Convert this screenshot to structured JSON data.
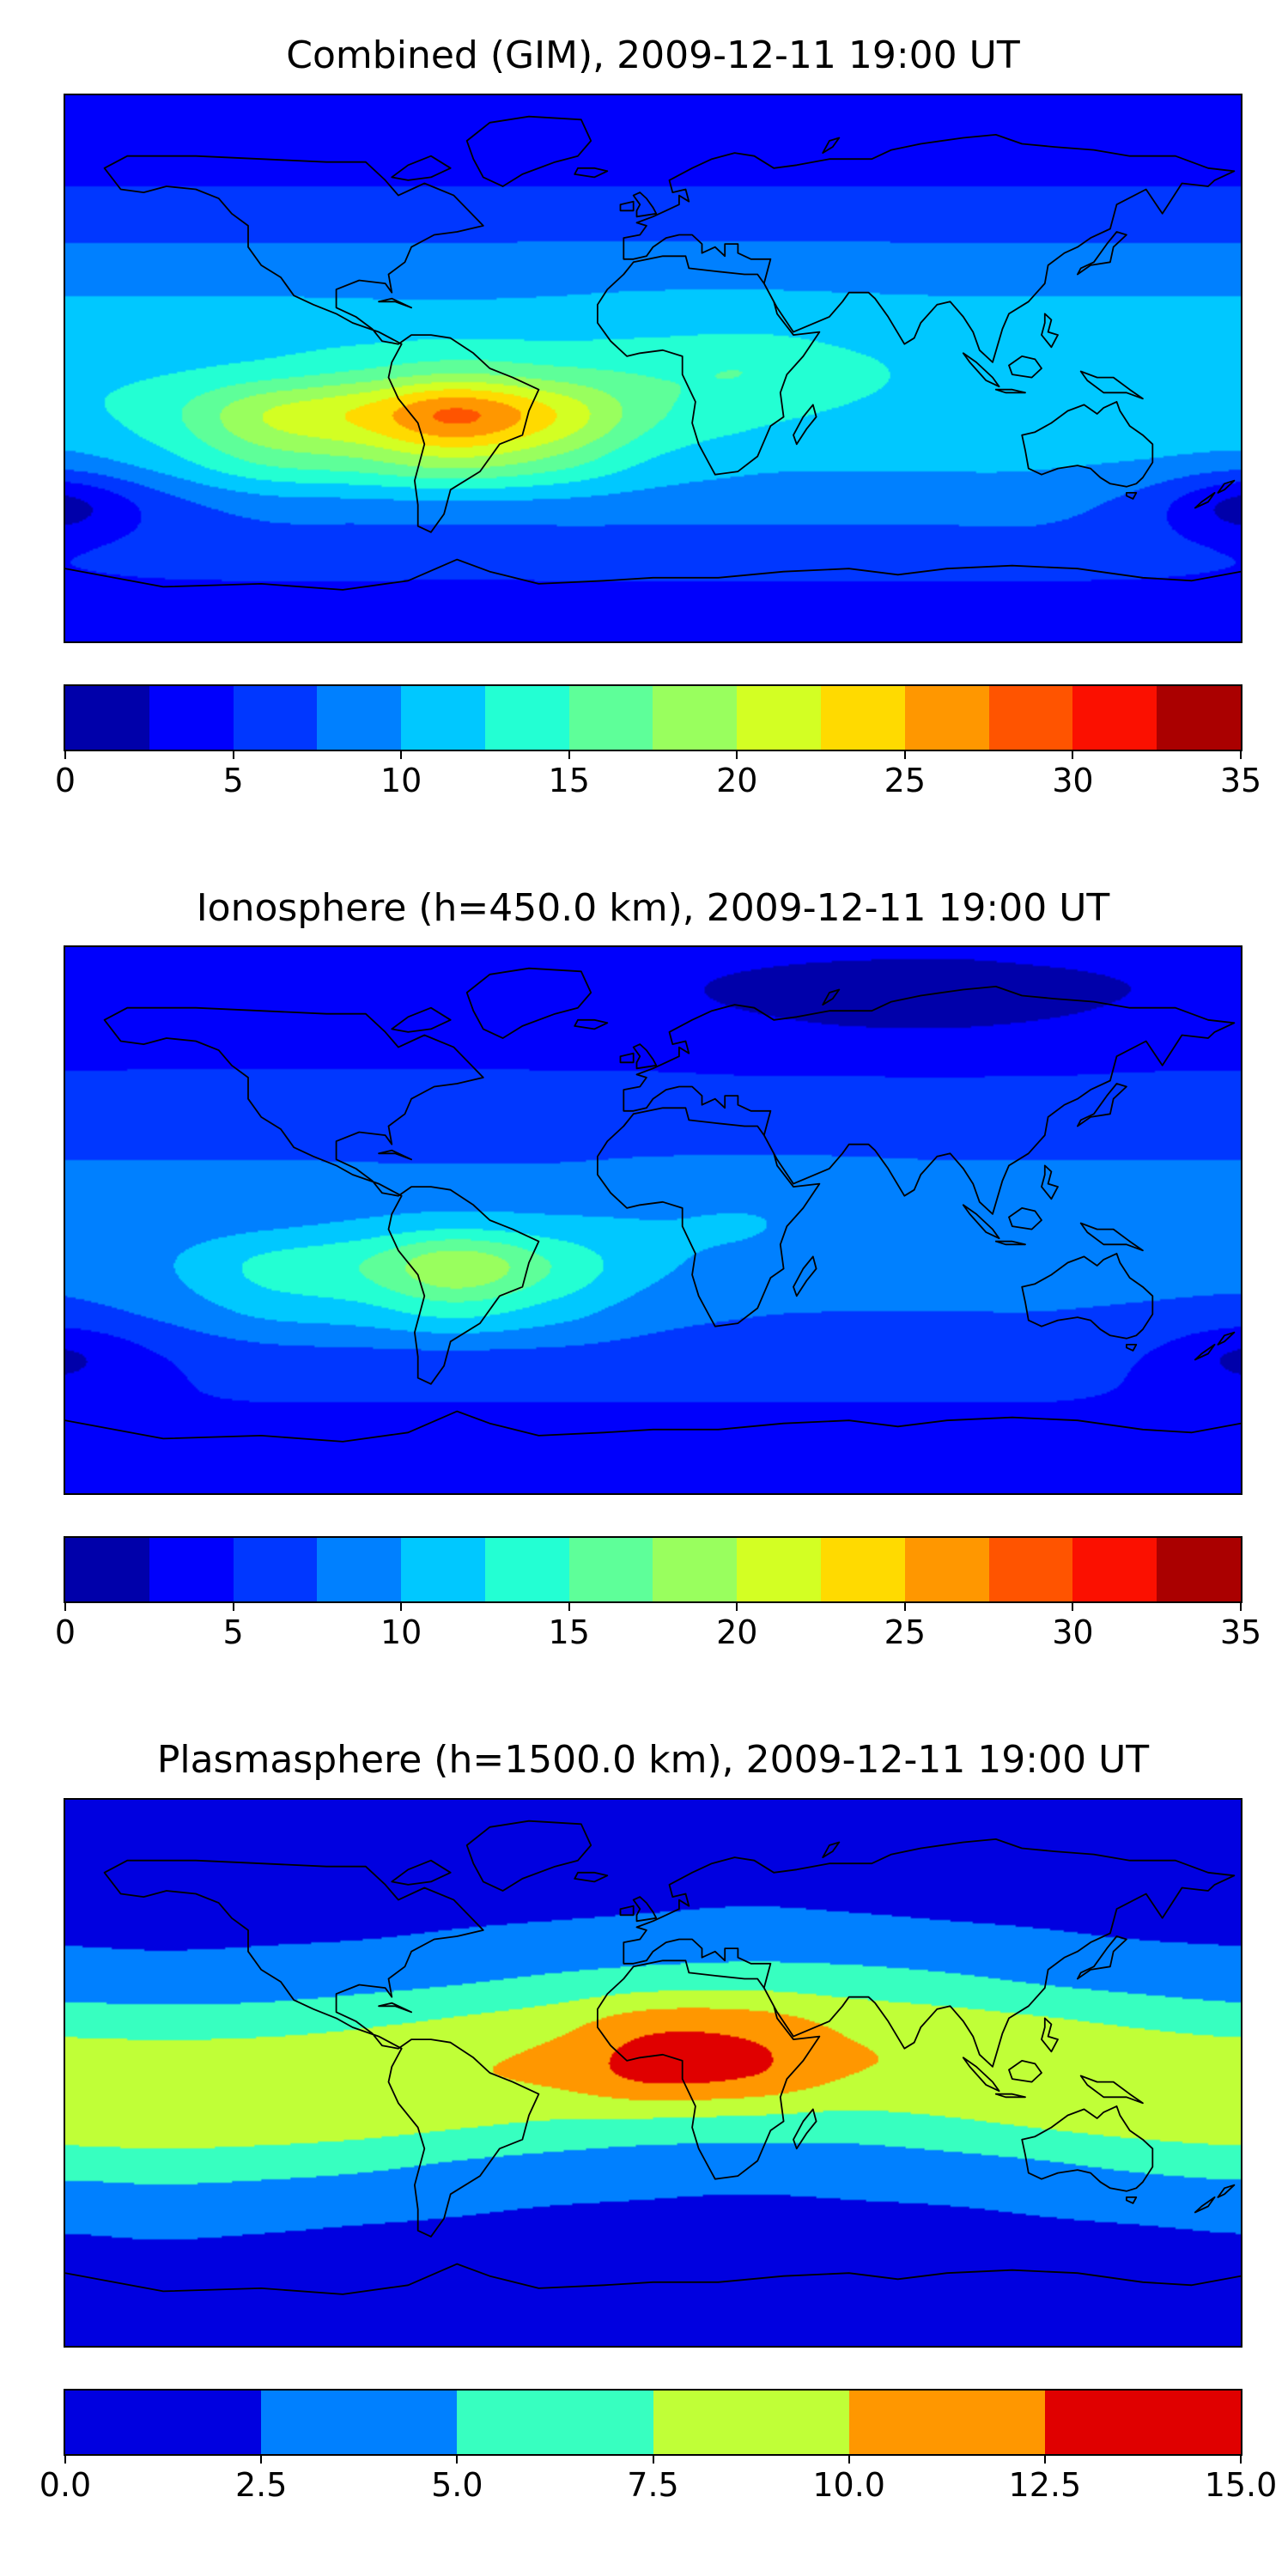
{
  "figure": {
    "panels": [
      {
        "id": "combined-gim",
        "title": "Combined (GIM), 2009-12-11 19:00 UT",
        "colorbar": {
          "ticks": [
            "0",
            "5",
            "10",
            "15",
            "20",
            "25",
            "30",
            "35"
          ]
        }
      },
      {
        "id": "ionosphere",
        "title": "Ionosphere  (h=450.0 km), 2009-12-11 19:00 UT",
        "colorbar": {
          "ticks": [
            "0",
            "5",
            "10",
            "15",
            "20",
            "25",
            "30",
            "35"
          ]
        }
      },
      {
        "id": "plasmasphere",
        "title": "Plasmasphere (h=1500.0 km), 2009-12-11 19:00 UT",
        "colorbar": {
          "ticks": [
            "0.0",
            "2.5",
            "5.0",
            "7.5",
            "10.0",
            "12.5",
            "15.0"
          ]
        }
      }
    ]
  },
  "chart_data": [
    {
      "type": "heatmap",
      "title": "Combined (GIM), 2009-12-11 19:00 UT",
      "projection": "equirectangular world map",
      "colormap": "jet",
      "levels": {
        "min": 0,
        "max": 35,
        "step": 2.5
      },
      "colorbar_ticks": [
        0,
        5,
        10,
        15,
        20,
        25,
        30,
        35
      ],
      "colors": [
        "#0000aa",
        "#0000fc",
        "#0037ff",
        "#0080ff",
        "#00c8ff",
        "#23ffd3",
        "#5eff99",
        "#99ff5e",
        "#d3ff23",
        "#ffda00",
        "#ff9700",
        "#ff5400",
        "#fb1000",
        "#aa0000"
      ],
      "lon": [
        -180,
        -150,
        -120,
        -90,
        -60,
        -30,
        0,
        30,
        60,
        90,
        120,
        150,
        180
      ],
      "lat": [
        90,
        75,
        60,
        45,
        30,
        15,
        0,
        -15,
        -30,
        -45,
        -60,
        -75,
        -90
      ],
      "values": [
        [
          3.6,
          3.6,
          3.6,
          3.6,
          3.6,
          3.6,
          3.6,
          3.6,
          3.6,
          3.6,
          3.6,
          3.6,
          3.6
        ],
        [
          3.8,
          3.8,
          3.8,
          3.8,
          3.8,
          3.8,
          3.8,
          3.8,
          3.8,
          3.8,
          3.8,
          3.8,
          3.8
        ],
        [
          5.0,
          5.0,
          5.0,
          5.0,
          5.0,
          5.0,
          5.0,
          5.0,
          5.0,
          5.0,
          5.0,
          5.0,
          5.0
        ],
        [
          7.0,
          7.0,
          7.0,
          7.0,
          7.0,
          7.0,
          7.0,
          7.0,
          7.0,
          7.0,
          7.0,
          7.0,
          7.0
        ],
        [
          9.2,
          9.2,
          9.2,
          9.2,
          9.2,
          9.3,
          9.4,
          9.4,
          9.3,
          9.2,
          9.2,
          9.2,
          9.2
        ],
        [
          11.0,
          11.0,
          11.1,
          11.1,
          11.2,
          11.2,
          11.5,
          11.7,
          11.3,
          11.0,
          11.0,
          11.0,
          11.0
        ],
        [
          11.9,
          12.2,
          13.2,
          14.8,
          16.4,
          15.3,
          14.6,
          14.9,
          13.0,
          12.0,
          11.9,
          11.9,
          11.9
        ],
        [
          11.8,
          14.1,
          19.9,
          23.0,
          28.0,
          22.6,
          15.6,
          13.3,
          12.2,
          11.7,
          11.7,
          11.7,
          11.7
        ],
        [
          9.1,
          11.6,
          15.7,
          17.3,
          19.6,
          16.9,
          12.4,
          10.8,
          10.5,
          10.5,
          10.4,
          10.0,
          9.1
        ],
        [
          1.6,
          6.3,
          8.7,
          9.1,
          9.4,
          9.2,
          8.7,
          8.5,
          8.5,
          8.5,
          8.4,
          6.3,
          1.6
        ],
        [
          4.8,
          5.8,
          6.3,
          6.3,
          6.3,
          6.3,
          6.3,
          6.3,
          6.3,
          6.3,
          6.3,
          5.8,
          4.8
        ],
        [
          4.5,
          4.5,
          4.5,
          4.5,
          4.5,
          4.5,
          4.5,
          4.5,
          4.5,
          4.5,
          4.5,
          4.5,
          4.5
        ],
        [
          3.6,
          3.6,
          3.6,
          3.6,
          3.6,
          3.6,
          3.6,
          3.6,
          3.6,
          3.6,
          3.6,
          3.6,
          3.6
        ]
      ]
    },
    {
      "type": "heatmap",
      "title": "Ionosphere  (h=450.0 km), 2009-12-11 19:00 UT",
      "projection": "equirectangular world map",
      "colormap": "jet",
      "levels": {
        "min": 0,
        "max": 35,
        "step": 2.5
      },
      "colorbar_ticks": [
        0,
        5,
        10,
        15,
        20,
        25,
        30,
        35
      ],
      "colors": [
        "#0000aa",
        "#0000fc",
        "#0037ff",
        "#0080ff",
        "#00c8ff",
        "#23ffd3",
        "#5eff99",
        "#99ff5e",
        "#d3ff23",
        "#ffda00",
        "#ff9700",
        "#ff5400",
        "#fb1000",
        "#aa0000"
      ],
      "lon": [
        -180,
        -150,
        -120,
        -90,
        -60,
        -30,
        0,
        30,
        60,
        90,
        120,
        150,
        180
      ],
      "lat": [
        90,
        75,
        60,
        45,
        30,
        15,
        0,
        -15,
        -30,
        -45,
        -60,
        -75,
        -90
      ],
      "values": [
        [
          3.3,
          3.4,
          3.4,
          3.4,
          3.4,
          3.4,
          3.3,
          3.1,
          3.0,
          2.9,
          3.1,
          3.2,
          3.3
        ],
        [
          3.2,
          3.4,
          3.5,
          3.5,
          3.5,
          3.3,
          2.9,
          2.1,
          1.3,
          1.2,
          1.8,
          2.6,
          3.2
        ],
        [
          4.0,
          4.2,
          4.2,
          4.2,
          4.2,
          4.1,
          3.9,
          3.5,
          3.1,
          3.0,
          3.3,
          3.8,
          4.0
        ],
        [
          5.4,
          5.4,
          5.4,
          5.4,
          5.4,
          5.4,
          5.4,
          5.3,
          5.3,
          5.3,
          5.3,
          5.4,
          5.4
        ],
        [
          6.7,
          6.7,
          6.7,
          6.7,
          6.7,
          6.7,
          6.7,
          6.7,
          6.7,
          6.7,
          6.7,
          6.7,
          6.7
        ],
        [
          7.8,
          7.8,
          7.9,
          7.9,
          7.9,
          7.9,
          8.1,
          8.2,
          8.0,
          7.8,
          7.8,
          7.8,
          7.8
        ],
        [
          8.3,
          8.5,
          9.1,
          10.1,
          11.0,
          10.4,
          10.0,
          10.1,
          9.0,
          8.4,
          8.3,
          8.3,
          8.3
        ],
        [
          8.3,
          9.7,
          13.1,
          15.0,
          19.5,
          14.8,
          10.6,
          9.2,
          8.5,
          8.2,
          8.2,
          8.2,
          8.2
        ],
        [
          6.7,
          8.2,
          10.6,
          11.6,
          13.5,
          11.3,
          8.6,
          7.7,
          7.5,
          7.5,
          7.5,
          7.2,
          6.6
        ],
        [
          2.1,
          5.0,
          6.4,
          6.7,
          6.8,
          6.7,
          6.4,
          6.3,
          6.3,
          6.3,
          6.2,
          5.0,
          2.1
        ],
        [
          4.1,
          4.7,
          5.0,
          5.0,
          5.0,
          5.0,
          5.0,
          5.0,
          5.0,
          5.0,
          5.0,
          4.7,
          4.1
        ],
        [
          3.9,
          3.9,
          3.9,
          3.9,
          3.9,
          3.9,
          3.9,
          3.9,
          3.9,
          3.9,
          3.9,
          3.9,
          3.9
        ],
        [
          3.4,
          3.4,
          3.4,
          3.4,
          3.4,
          3.4,
          3.4,
          3.4,
          3.4,
          3.4,
          3.4,
          3.4,
          3.4
        ]
      ]
    },
    {
      "type": "heatmap",
      "title": "Plasmasphere (h=1500.0 km), 2009-12-11 19:00 UT",
      "projection": "equirectangular world map",
      "colormap": "jet",
      "levels": {
        "min": 0,
        "max": 15,
        "step": 2.5
      },
      "colorbar_ticks": [
        0.0,
        2.5,
        5.0,
        7.5,
        10.0,
        12.5,
        15.0
      ],
      "colors": [
        "#0000e0",
        "#0080ff",
        "#37ffc0",
        "#c0ff37",
        "#ff9700",
        "#e00000"
      ],
      "lon": [
        -180,
        -150,
        -120,
        -90,
        -60,
        -30,
        0,
        30,
        60,
        90,
        120,
        150,
        180
      ],
      "lat": [
        90,
        75,
        60,
        45,
        30,
        15,
        0,
        -15,
        -30,
        -45,
        -60,
        -75,
        -90
      ],
      "values": [
        [
          1.8,
          1.8,
          1.8,
          1.8,
          1.8,
          1.8,
          1.8,
          1.8,
          1.8,
          1.8,
          1.8,
          1.8,
          1.8
        ],
        [
          1.9,
          1.9,
          1.9,
          1.9,
          1.9,
          1.9,
          1.9,
          1.9,
          1.9,
          1.9,
          1.9,
          1.9,
          1.9
        ],
        [
          1.9,
          1.9,
          1.9,
          1.9,
          2.0,
          2.0,
          2.1,
          2.2,
          2.1,
          2.0,
          2.0,
          1.9,
          1.9
        ],
        [
          2.3,
          2.2,
          2.3,
          2.4,
          2.7,
          3.0,
          3.3,
          3.5,
          3.3,
          3.0,
          2.7,
          2.4,
          2.3
        ],
        [
          3.7,
          3.6,
          3.7,
          4.2,
          4.8,
          5.6,
          6.4,
          6.6,
          6.2,
          5.6,
          4.8,
          4.2,
          3.7
        ],
        [
          6.8,
          6.6,
          6.8,
          7.4,
          8.2,
          9.4,
          12.0,
          11.7,
          9.6,
          8.9,
          8.2,
          7.4,
          6.8
        ],
        [
          9.6,
          9.5,
          9.6,
          9.7,
          9.8,
          10.7,
          13.4,
          12.7,
          10.1,
          9.8,
          9.8,
          9.8,
          9.6
        ],
        [
          9.3,
          9.4,
          9.3,
          8.9,
          8.2,
          7.6,
          7.5,
          7.2,
          6.9,
          7.4,
          8.2,
          8.9,
          9.3
        ],
        [
          6.1,
          6.4,
          6.1,
          5.6,
          4.8,
          4.2,
          3.7,
          3.6,
          3.7,
          4.2,
          4.8,
          5.6,
          6.1
        ],
        [
          3.3,
          3.5,
          3.3,
          3.0,
          2.7,
          2.4,
          2.3,
          2.2,
          2.3,
          2.4,
          2.7,
          3.0,
          3.3
        ],
        [
          2.1,
          2.2,
          2.1,
          2.0,
          2.0,
          1.9,
          1.9,
          1.9,
          1.9,
          1.9,
          2.0,
          2.0,
          2.1
        ],
        [
          1.9,
          1.9,
          1.9,
          1.9,
          1.9,
          1.9,
          1.9,
          1.9,
          1.9,
          1.9,
          1.9,
          1.9,
          1.9
        ],
        [
          1.8,
          1.8,
          1.8,
          1.8,
          1.8,
          1.8,
          1.8,
          1.8,
          1.8,
          1.8,
          1.8,
          1.8,
          1.8
        ]
      ]
    }
  ]
}
